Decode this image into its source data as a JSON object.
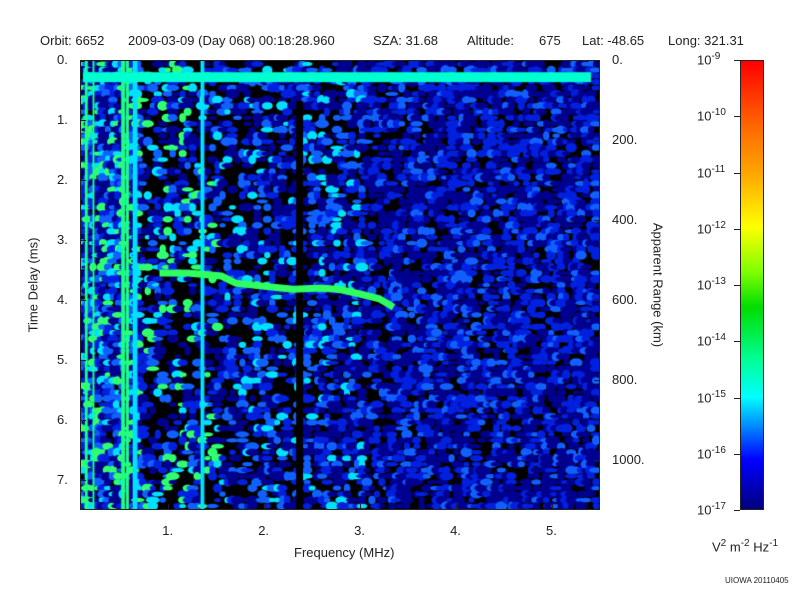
{
  "header": {
    "orbit": "Orbit: 6652",
    "datetime": "2009-03-09 (Day 068) 00:18:28.960",
    "sza": "SZA:  31.68",
    "altitude_label": "Altitude:",
    "altitude_value": "675",
    "lat": "Lat: -48.65",
    "long": "Long: 321.31"
  },
  "chart_data": {
    "type": "heatmap",
    "xlabel": "Frequency (MHz)",
    "ylabel": "Time Delay (ms)",
    "y2label": "Apparent Range (km)",
    "xlim": [
      0.08,
      5.5
    ],
    "ylim": [
      7.5,
      0
    ],
    "y2lim": [
      1125,
      0
    ],
    "xticks": [
      "1.",
      "2.",
      "3.",
      "4.",
      "5."
    ],
    "xtick_values": [
      1,
      2,
      3,
      4,
      5
    ],
    "yticks": [
      "0.",
      "1.",
      "2.",
      "3.",
      "4.",
      "5.",
      "6.",
      "7."
    ],
    "ytick_values": [
      0,
      1,
      2,
      3,
      4,
      5,
      6,
      7
    ],
    "y2ticks": [
      "0.",
      "200.",
      "400.",
      "600.",
      "800.",
      "1000."
    ],
    "y2tick_values": [
      0,
      200,
      400,
      600,
      800,
      1000
    ],
    "surface_reflection_delay_ms": 0.27,
    "ionospheric_trace": [
      [
        0.9,
        3.55
      ],
      [
        1.2,
        3.55
      ],
      [
        1.55,
        3.6
      ],
      [
        1.7,
        3.72
      ],
      [
        2.0,
        3.77
      ],
      [
        2.3,
        3.82
      ],
      [
        2.6,
        3.8
      ],
      [
        2.8,
        3.83
      ],
      [
        3.0,
        3.9
      ],
      [
        3.2,
        3.98
      ],
      [
        3.35,
        4.12
      ]
    ],
    "colorbar": {
      "ticks": [
        "10",
        "10",
        "10",
        "10",
        "10",
        "10",
        "10",
        "10",
        "10"
      ],
      "exponents": [
        "-9",
        "-10",
        "-11",
        "-12",
        "-13",
        "-14",
        "-15",
        "-16",
        "-17"
      ],
      "unit": [
        "V",
        "2",
        "m",
        "-2",
        "Hz",
        "-1"
      ],
      "range_log10": [
        -17,
        -9
      ]
    }
  },
  "footer": {
    "credit": "UIOWA 20110405"
  }
}
